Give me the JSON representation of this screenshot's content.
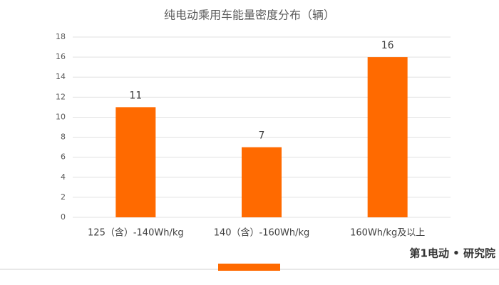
{
  "chart_data": {
    "type": "bar",
    "title": "纯电动乘用车能量密度分布（辆）",
    "categories": [
      "125（含）-140Wh/kg",
      "140（含）-160Wh/kg",
      "160Wh/kg及以上"
    ],
    "values": [
      11,
      7,
      16
    ],
    "color": "#ff6a00",
    "ylim": [
      0,
      18
    ],
    "yticks": [
      0,
      2,
      4,
      6,
      8,
      10,
      12,
      14,
      16,
      18
    ],
    "grid": true,
    "data_labels": true
  },
  "footer": {
    "brand": "第1电动 • 研究院"
  }
}
